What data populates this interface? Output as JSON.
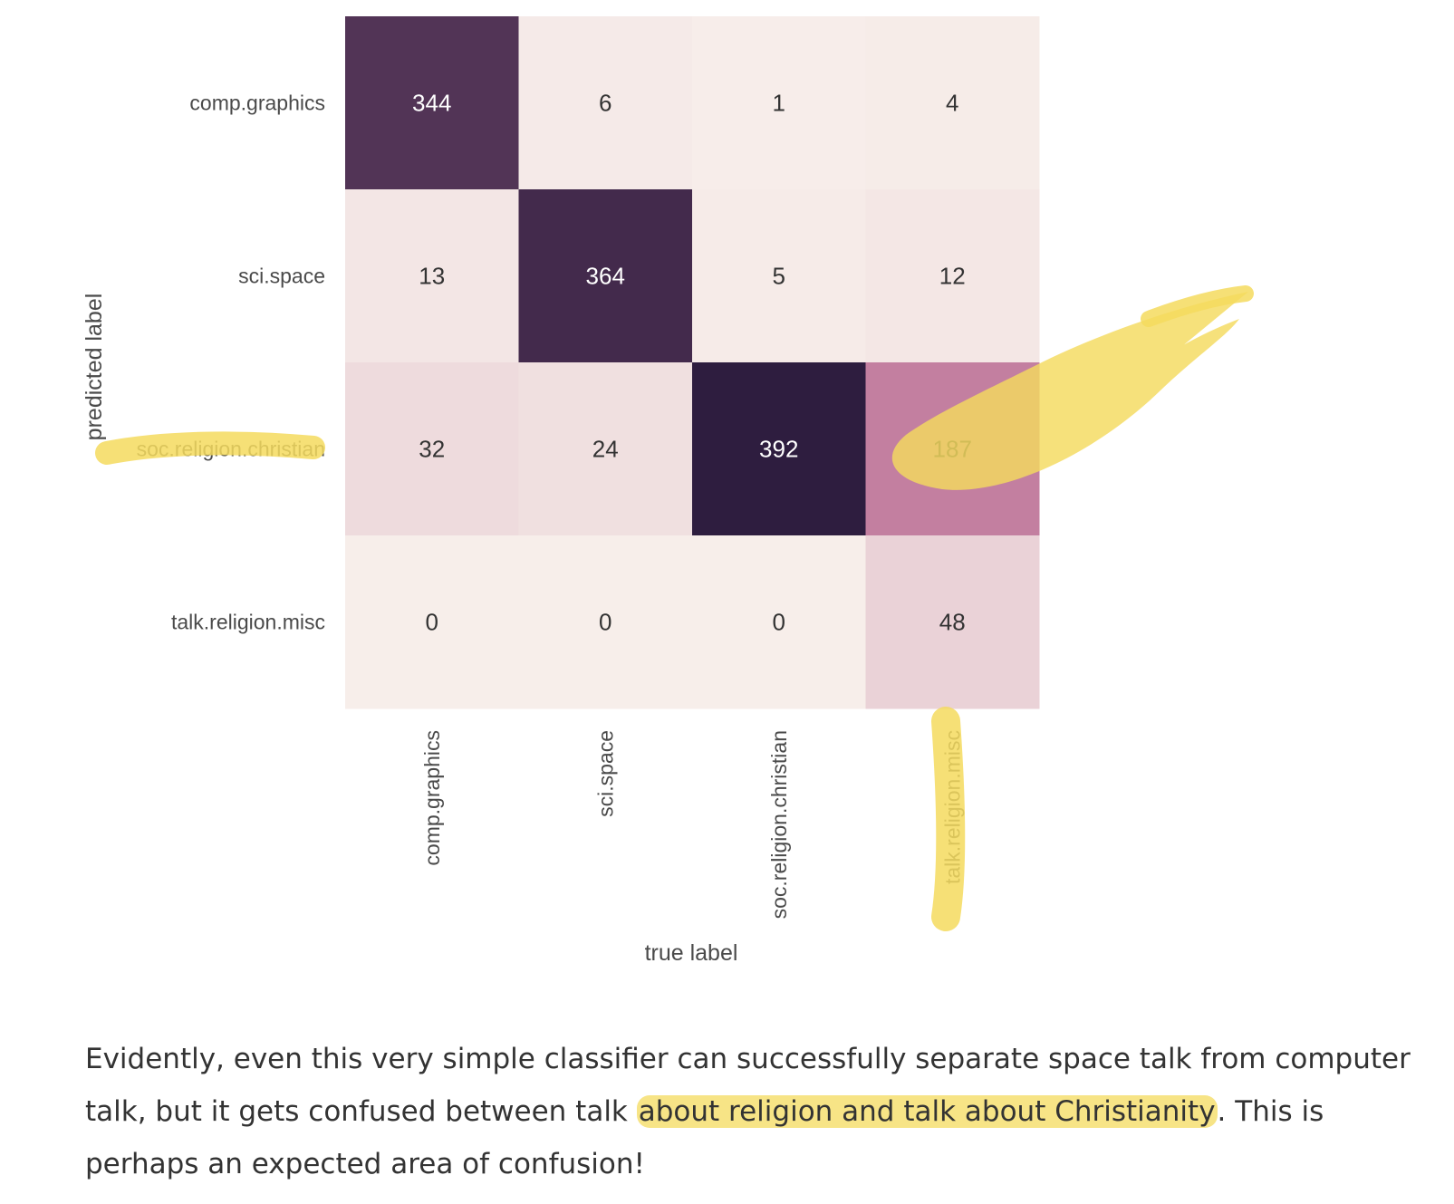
{
  "chart_data": {
    "type": "heatmap",
    "row_labels": [
      "comp.graphics",
      "sci.space",
      "soc.religion.christian",
      "talk.religion.misc"
    ],
    "col_labels": [
      "comp.graphics",
      "sci.space",
      "soc.religion.christian",
      "talk.religion.misc"
    ],
    "values": [
      [
        344,
        6,
        1,
        4
      ],
      [
        13,
        364,
        5,
        12
      ],
      [
        32,
        24,
        392,
        187
      ],
      [
        0,
        0,
        0,
        48
      ]
    ],
    "xlabel": "true label",
    "ylabel": "predicted label",
    "colors": {
      "low": "#f7eeea",
      "mid": "#c07a9c",
      "high": "#2e1d3f",
      "text_dark": "#333333",
      "text_light": "#ffffff"
    }
  },
  "annotations": {
    "highlighter_color": "#f4db5e",
    "highlighted_row_label": "soc.religion.christian",
    "highlighted_col_label": "talk.religion.misc",
    "highlighted_cell_value": "187"
  },
  "caption": {
    "part1": "Evidently, even this very simple classifier can successfully separate space talk from computer talk, but it gets confused between talk ",
    "highlight": "about religion and talk about Christianity",
    "part2": ". This is perhaps an expected area of confusion!"
  }
}
